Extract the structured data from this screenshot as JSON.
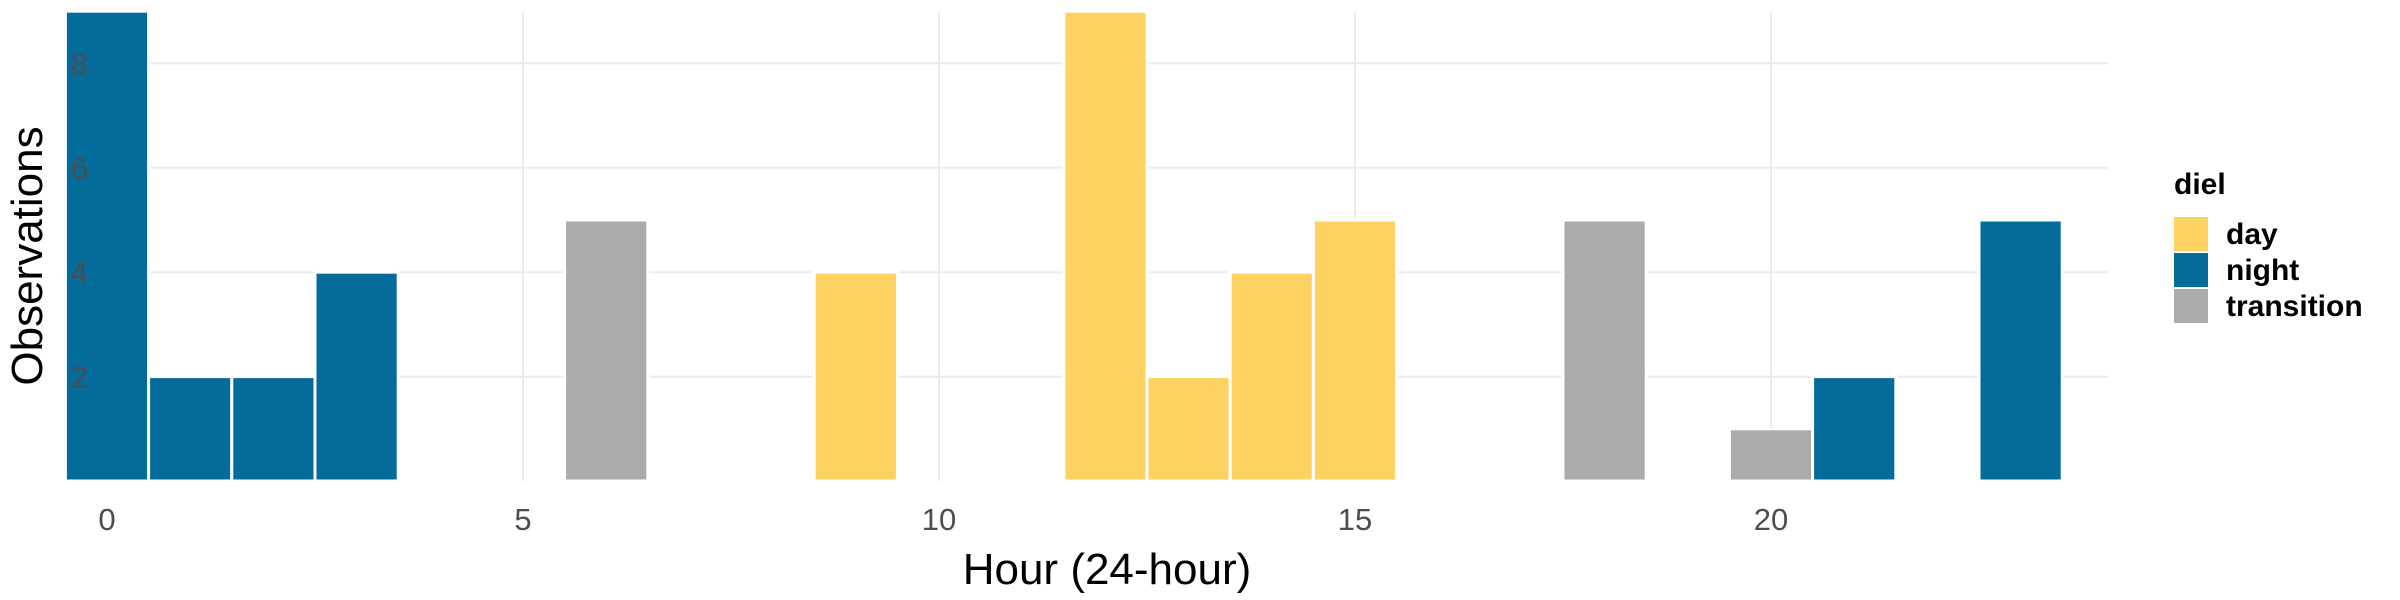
{
  "chart_data": {
    "type": "bar",
    "xlabel": "Hour (24-hour)",
    "ylabel": "Observations",
    "xlim": [
      0,
      24
    ],
    "ylim": [
      0,
      9
    ],
    "x_ticks": [
      0,
      5,
      10,
      15,
      20
    ],
    "y_ticks": [
      2,
      4,
      6,
      8
    ],
    "grid": true,
    "legend": {
      "title": "diel",
      "position": "right",
      "entries": [
        {
          "name": "day",
          "color": "#FDD262"
        },
        {
          "name": "night",
          "color": "#046C9A"
        },
        {
          "name": "transition",
          "color": "#ABABAB"
        }
      ]
    },
    "bars": [
      {
        "hour": 0,
        "value": 9,
        "group": "night"
      },
      {
        "hour": 1,
        "value": 2,
        "group": "night"
      },
      {
        "hour": 2,
        "value": 2,
        "group": "night"
      },
      {
        "hour": 3,
        "value": 4,
        "group": "night"
      },
      {
        "hour": 6,
        "value": 5,
        "group": "transition"
      },
      {
        "hour": 9,
        "value": 4,
        "group": "day"
      },
      {
        "hour": 12,
        "value": 9,
        "group": "day"
      },
      {
        "hour": 13,
        "value": 2,
        "group": "day"
      },
      {
        "hour": 14,
        "value": 4,
        "group": "day"
      },
      {
        "hour": 15,
        "value": 5,
        "group": "day"
      },
      {
        "hour": 18,
        "value": 5,
        "group": "transition"
      },
      {
        "hour": 20,
        "value": 1,
        "group": "transition"
      },
      {
        "hour": 21,
        "value": 2,
        "group": "night"
      },
      {
        "hour": 23,
        "value": 5,
        "group": "night"
      }
    ]
  }
}
